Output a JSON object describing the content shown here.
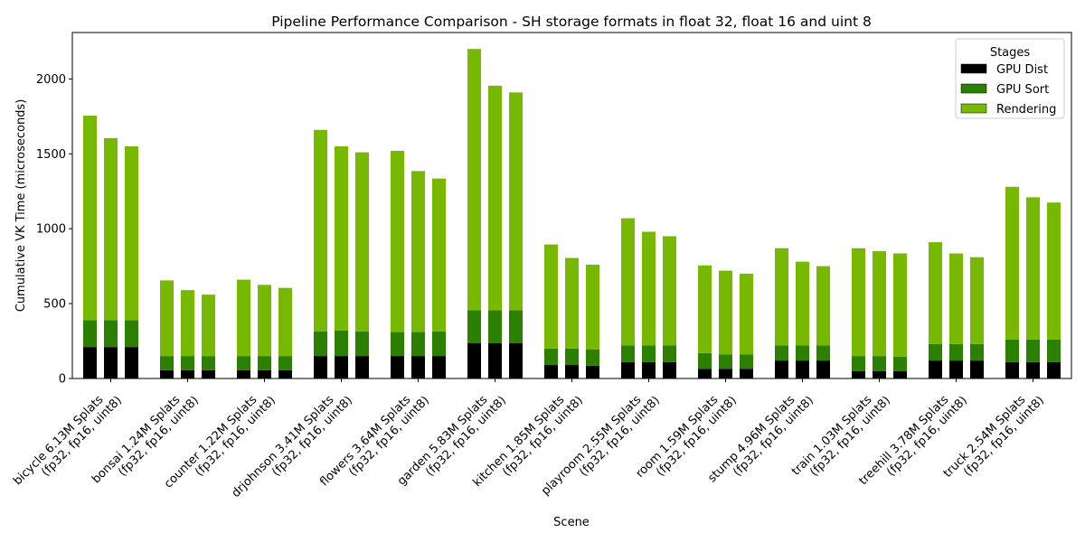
{
  "chart_data": {
    "type": "bar",
    "stacked": true,
    "title": "Pipeline Performance Comparison - SH storage formats in float 32, float 16 and uint 8",
    "xlabel": "Scene",
    "ylabel": "Cumulative VK Time (microseconds)",
    "ylim": [
      0,
      2310
    ],
    "yticks": [
      0,
      500,
      1000,
      1500,
      2000
    ],
    "grid": false,
    "legend": {
      "title": "Stages",
      "placement": "top-right"
    },
    "bars_per_group": 3,
    "categories": [
      [
        "bicycle 6.13M Splats",
        "(fp32, fp16, uint8)"
      ],
      [
        "bonsai 1.24M Splats",
        "(fp32, fp16, uint8)"
      ],
      [
        "counter 1.22M Splats",
        "(fp32, fp16, uint8)"
      ],
      [
        "drjohnson 3.41M Splats",
        "(fp32, fp16, uint8)"
      ],
      [
        "flowers 3.64M Splats",
        "(fp32, fp16, uint8)"
      ],
      [
        "garden 5.83M Splats",
        "(fp32, fp16, uint8)"
      ],
      [
        "kitchen 1.85M Splats",
        "(fp32, fp16, uint8)"
      ],
      [
        "playroom 2.55M Splats",
        "(fp32, fp16, uint8)"
      ],
      [
        "room 1.59M Splats",
        "(fp32, fp16, uint8)"
      ],
      [
        "stump 4.96M Splats",
        "(fp32, fp16, uint8)"
      ],
      [
        "train 1.03M Splats",
        "(fp32, fp16, uint8)"
      ],
      [
        "treehill 3.78M Splats",
        "(fp32, fp16, uint8)"
      ],
      [
        "truck 2.54M Splats",
        "(fp32, fp16, uint8)"
      ]
    ],
    "series": [
      {
        "name": "GPU Dist",
        "color": "#000000",
        "values": [
          [
            210,
            210,
            210
          ],
          [
            55,
            55,
            55
          ],
          [
            55,
            55,
            55
          ],
          [
            150,
            150,
            150
          ],
          [
            150,
            150,
            150
          ],
          [
            235,
            235,
            235
          ],
          [
            90,
            90,
            85
          ],
          [
            110,
            110,
            110
          ],
          [
            65,
            65,
            65
          ],
          [
            120,
            120,
            120
          ],
          [
            50,
            50,
            50
          ],
          [
            120,
            120,
            120
          ],
          [
            110,
            110,
            110
          ]
        ]
      },
      {
        "name": "GPU Sort",
        "color": "#2b8000",
        "values": [
          [
            180,
            180,
            180
          ],
          [
            95,
            95,
            95
          ],
          [
            95,
            95,
            95
          ],
          [
            165,
            170,
            165
          ],
          [
            160,
            160,
            165
          ],
          [
            220,
            220,
            220
          ],
          [
            110,
            110,
            110
          ],
          [
            110,
            110,
            110
          ],
          [
            105,
            95,
            95
          ],
          [
            100,
            100,
            100
          ],
          [
            100,
            100,
            95
          ],
          [
            110,
            110,
            110
          ],
          [
            150,
            150,
            150
          ]
        ]
      },
      {
        "name": "Rendering",
        "color": "#76b900",
        "values": [
          [
            1365,
            1215,
            1160
          ],
          [
            505,
            440,
            410
          ],
          [
            510,
            475,
            455
          ],
          [
            1345,
            1230,
            1195
          ],
          [
            1210,
            1075,
            1020
          ],
          [
            1745,
            1500,
            1455
          ],
          [
            695,
            605,
            565
          ],
          [
            850,
            760,
            730
          ],
          [
            585,
            560,
            540
          ],
          [
            650,
            560,
            530
          ],
          [
            720,
            700,
            690
          ],
          [
            680,
            605,
            580
          ],
          [
            1020,
            950,
            915
          ]
        ]
      }
    ]
  }
}
